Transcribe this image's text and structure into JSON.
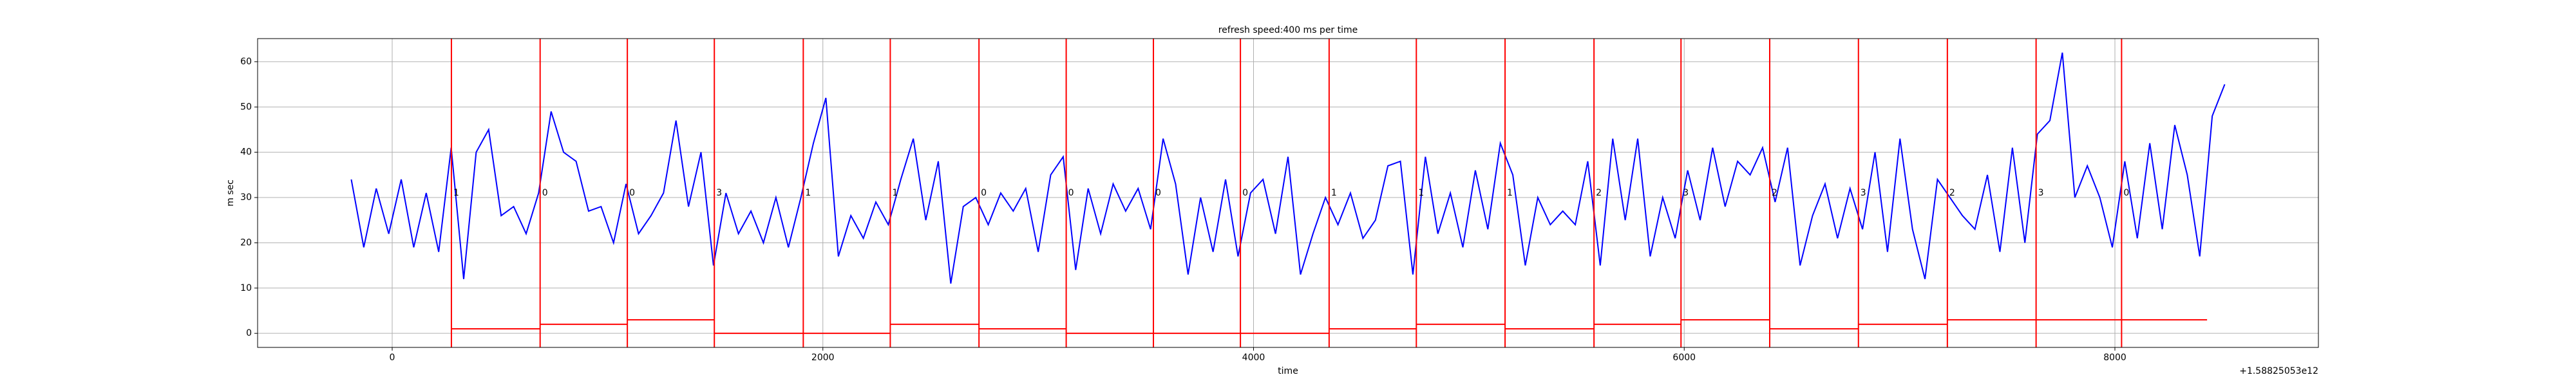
{
  "chart_data": {
    "type": "line",
    "title": "refresh speed:400 ms per time",
    "xlabel": "time",
    "ylabel": "m sec",
    "x_offset_label": "+1.58825053e12",
    "x": [
      -190,
      -132,
      -74,
      -16,
      42,
      100,
      158,
      216,
      274,
      332,
      390,
      448,
      506,
      564,
      622,
      680,
      738,
      796,
      854,
      912,
      970,
      1028,
      1086,
      1144,
      1202,
      1260,
      1318,
      1376,
      1434,
      1492,
      1550,
      1608,
      1666,
      1724,
      1782,
      1840,
      1898,
      1956,
      2014,
      2072,
      2130,
      2188,
      2246,
      2304,
      2362,
      2420,
      2478,
      2536,
      2594,
      2652,
      2710,
      2768,
      2826,
      2884,
      2942,
      3000,
      3058,
      3116,
      3174,
      3232,
      3290,
      3348,
      3406,
      3464,
      3522,
      3580,
      3638,
      3696,
      3754,
      3812,
      3870,
      3928,
      3986,
      4044,
      4102,
      4160,
      4218,
      4276,
      4334,
      4392,
      4450,
      4508,
      4566,
      4624,
      4682,
      4740,
      4798,
      4856,
      4914,
      4972,
      5030,
      5088,
      5146,
      5204,
      5262,
      5320,
      5378,
      5436,
      5494,
      5552,
      5610,
      5668,
      5726,
      5784,
      5842,
      5900,
      5958,
      6016,
      6074,
      6132,
      6190,
      6248,
      6306,
      6364,
      6422,
      6480,
      6538,
      6596,
      6654,
      6712,
      6770,
      6828,
      6886,
      6944,
      7002,
      7060,
      7118,
      7176,
      7234,
      7292,
      7350,
      7408,
      7466,
      7524,
      7582,
      7640,
      7698,
      7756,
      7814,
      7872,
      7930,
      7988,
      8046,
      8104,
      8162,
      8220,
      8278,
      8336,
      8394,
      8452,
      8510
    ],
    "series": [
      {
        "color": "#0000ff",
        "values": [
          34,
          19,
          32,
          22,
          34,
          19,
          31,
          18,
          41,
          12,
          40,
          45,
          26,
          28,
          22,
          31,
          49,
          40,
          38,
          27,
          28,
          20,
          33,
          22,
          26,
          31,
          47,
          28,
          40,
          15,
          31,
          22,
          27,
          20,
          30,
          19,
          30,
          42,
          52,
          17,
          26,
          21,
          29,
          24,
          34,
          43,
          25,
          38,
          11,
          28,
          30,
          24,
          31,
          27,
          32,
          18,
          35,
          39,
          14,
          32,
          22,
          33,
          27,
          32,
          23,
          43,
          33,
          13,
          30,
          18,
          34,
          17,
          31,
          34,
          22,
          39,
          13,
          22,
          30,
          24,
          31,
          21,
          25,
          37,
          38,
          13,
          39,
          22,
          31,
          19,
          36,
          23,
          42,
          35,
          15,
          30,
          24,
          27,
          24,
          38,
          15,
          43,
          25,
          43,
          17,
          30,
          21,
          36,
          25,
          41,
          28,
          38,
          35,
          41,
          29,
          41,
          15,
          26,
          33,
          21,
          32,
          23,
          40,
          18,
          43,
          23,
          12,
          34,
          30,
          26,
          23,
          35,
          18,
          41,
          20,
          44,
          47,
          62,
          30,
          37,
          30,
          19,
          38,
          21,
          42,
          23,
          46,
          35,
          17,
          48,
          55
        ]
      }
    ],
    "marker_color": "#ff0000",
    "vlines": [
      275,
      687,
      1092,
      1496,
      1909,
      2313,
      2725,
      3130,
      3535,
      3939,
      4351,
      4756,
      5168,
      5581,
      5985,
      6397,
      6809,
      7222,
      7634,
      8031
    ],
    "steps": [
      {
        "x": [
          275,
          687
        ],
        "y": 1
      },
      {
        "x": [
          687,
          1092
        ],
        "y": 2
      },
      {
        "x": [
          1092,
          1496
        ],
        "y": 3
      },
      {
        "x": [
          1496,
          1909
        ],
        "y": 0
      },
      {
        "x": [
          1909,
          2313
        ],
        "y": 0
      },
      {
        "x": [
          2313,
          2725
        ],
        "y": 2
      },
      {
        "x": [
          2725,
          3130
        ],
        "y": 1
      },
      {
        "x": [
          3130,
          3535
        ],
        "y": 0
      },
      {
        "x": [
          3535,
          3939
        ],
        "y": 0
      },
      {
        "x": [
          3939,
          4351
        ],
        "y": 0
      },
      {
        "x": [
          4351,
          4756
        ],
        "y": 1
      },
      {
        "x": [
          4756,
          5168
        ],
        "y": 2
      },
      {
        "x": [
          5168,
          5581
        ],
        "y": 1
      },
      {
        "x": [
          5581,
          5985
        ],
        "y": 2
      },
      {
        "x": [
          5985,
          6397
        ],
        "y": 3
      },
      {
        "x": [
          6397,
          6809
        ],
        "y": 1
      },
      {
        "x": [
          6809,
          7222
        ],
        "y": 2
      },
      {
        "x": [
          7222,
          7634
        ],
        "y": 3
      },
      {
        "x": [
          7634,
          8428
        ],
        "y": 3
      }
    ],
    "annotations": [
      {
        "x": 275,
        "y": 31,
        "text": "1"
      },
      {
        "x": 687,
        "y": 31,
        "text": "0"
      },
      {
        "x": 1092,
        "y": 31,
        "text": "0"
      },
      {
        "x": 1496,
        "y": 31,
        "text": "3"
      },
      {
        "x": 1909,
        "y": 31,
        "text": "1"
      },
      {
        "x": 2313,
        "y": 31,
        "text": "1"
      },
      {
        "x": 2725,
        "y": 31,
        "text": "0"
      },
      {
        "x": 3130,
        "y": 31,
        "text": "0"
      },
      {
        "x": 3535,
        "y": 31,
        "text": "0"
      },
      {
        "x": 3939,
        "y": 31,
        "text": "0"
      },
      {
        "x": 4351,
        "y": 31,
        "text": "1"
      },
      {
        "x": 4756,
        "y": 31,
        "text": "1"
      },
      {
        "x": 5168,
        "y": 31,
        "text": "1"
      },
      {
        "x": 5581,
        "y": 31,
        "text": "2"
      },
      {
        "x": 5985,
        "y": 31,
        "text": "3"
      },
      {
        "x": 6397,
        "y": 31,
        "text": "2"
      },
      {
        "x": 6809,
        "y": 31,
        "text": "3"
      },
      {
        "x": 7222,
        "y": 31,
        "text": "2"
      },
      {
        "x": 7634,
        "y": 31,
        "text": "3"
      },
      {
        "x": 8031,
        "y": 31,
        "text": "0"
      }
    ],
    "xlim": [
      -625,
      8945
    ],
    "ylim": [
      -3.1,
      65.1
    ],
    "xticks": [
      0,
      2000,
      4000,
      6000,
      8000
    ],
    "yticks": [
      0,
      10,
      20,
      30,
      40,
      50,
      60
    ],
    "grid": true
  }
}
